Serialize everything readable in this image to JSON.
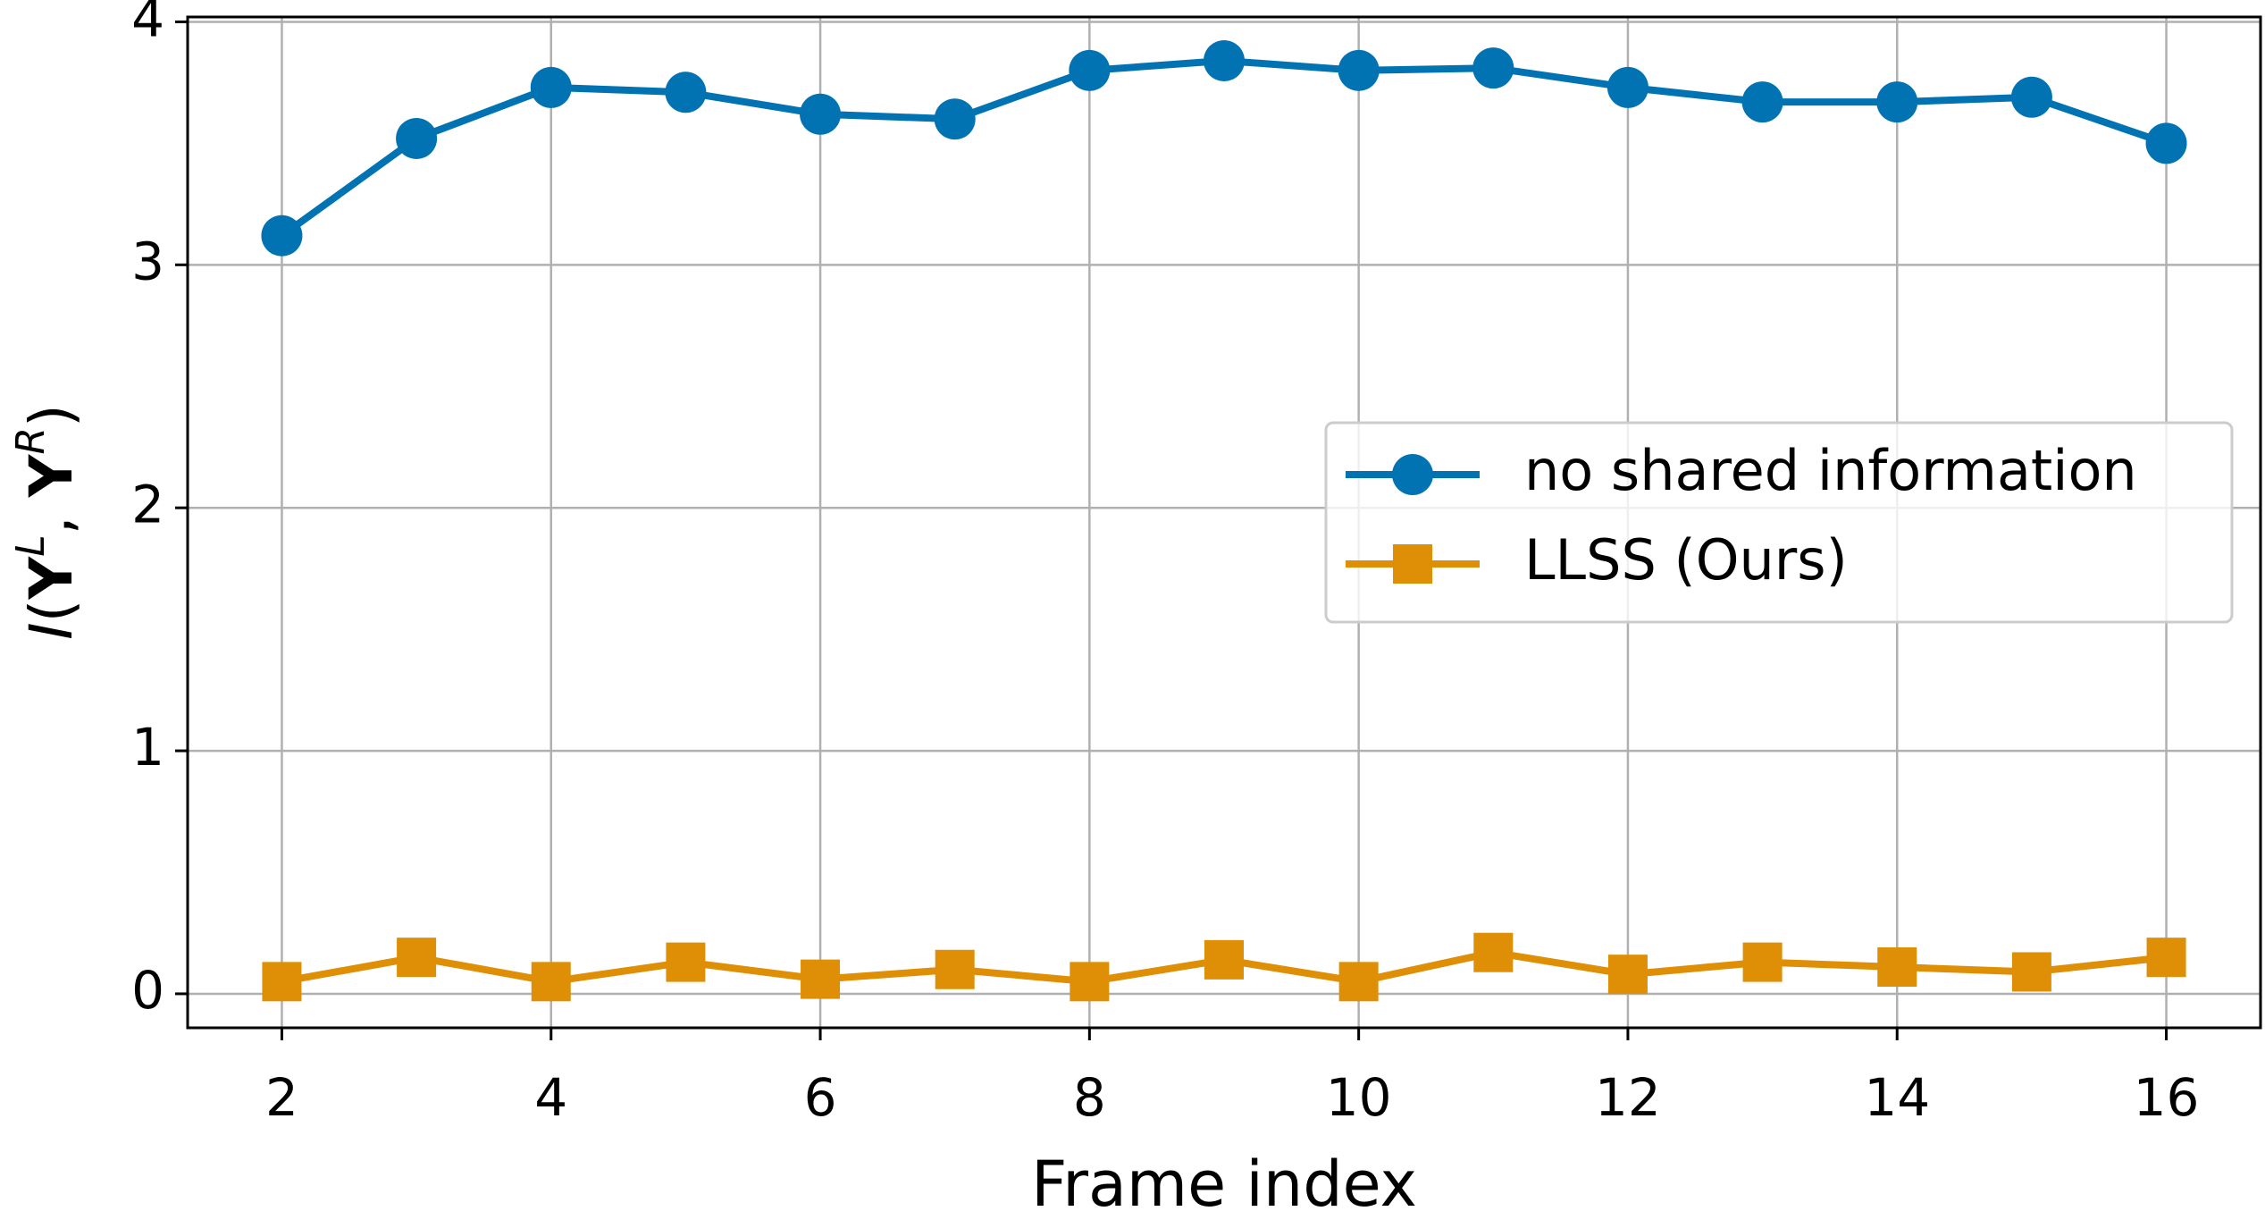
{
  "chart_data": {
    "type": "line",
    "x": [
      2,
      3,
      4,
      5,
      6,
      7,
      8,
      9,
      10,
      11,
      12,
      13,
      14,
      15,
      16
    ],
    "series": [
      {
        "name": "no shared information",
        "color": "#0173b2",
        "marker": "circle",
        "values": [
          3.12,
          3.52,
          3.73,
          3.71,
          3.62,
          3.6,
          3.8,
          3.84,
          3.8,
          3.81,
          3.73,
          3.67,
          3.67,
          3.69,
          3.5
        ]
      },
      {
        "name": "LLSS (Ours)",
        "color": "#de8f05",
        "marker": "square",
        "values": [
          0.05,
          0.15,
          0.05,
          0.13,
          0.06,
          0.1,
          0.05,
          0.14,
          0.05,
          0.17,
          0.08,
          0.13,
          0.11,
          0.09,
          0.15
        ]
      }
    ],
    "xlabel": "Frame index",
    "ylabel": [
      "I",
      "(",
      "Y",
      "L",
      ", ",
      "Y",
      "R",
      ")"
    ],
    "xlim": [
      1.3,
      16.7
    ],
    "ylim": [
      -0.14,
      4.02
    ],
    "xticks": [
      2,
      4,
      6,
      8,
      10,
      12,
      14,
      16
    ],
    "yticks": [
      0,
      1,
      2,
      3,
      4
    ],
    "grid": true,
    "legend": "center right"
  }
}
